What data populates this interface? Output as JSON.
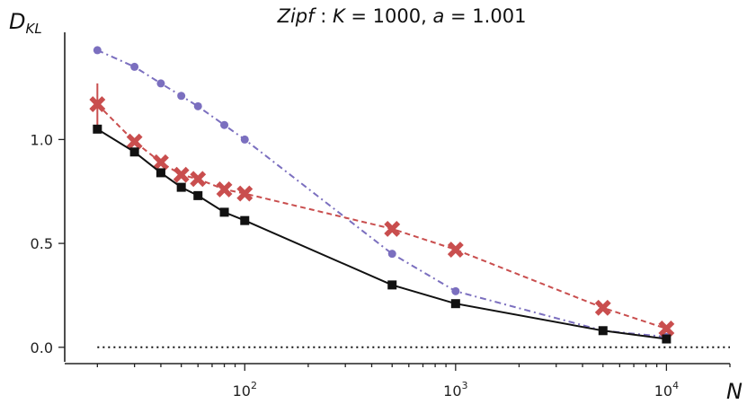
{
  "chart_data": {
    "type": "line",
    "title": "Zipf : K = 1000,  a = 1.001",
    "title_parts": {
      "lead": "Zipf",
      "sep": " : ",
      "k_sym": "K",
      "k_val": " = 1000,  ",
      "a_sym": "a",
      "a_val": " = 1.001"
    },
    "ylabel": {
      "main": "D",
      "sub": "KL"
    },
    "xlabel": "N",
    "xscale": "log",
    "xlim": [
      14,
      20000
    ],
    "ylim": [
      -0.07,
      1.49
    ],
    "yticks": [
      0.0,
      0.5,
      1.0
    ],
    "ytick_labels": [
      "0.0",
      "0.5",
      "1.0"
    ],
    "xticks_major": [
      100,
      1000,
      10000
    ],
    "xtick_labels": [
      {
        "base": "10",
        "exp": "2"
      },
      {
        "base": "10",
        "exp": "3"
      },
      {
        "base": "10",
        "exp": "4"
      }
    ],
    "grid": false,
    "legend": "none",
    "series": [
      {
        "style": "purple-dashdot-circle",
        "color": "#7b6fbf",
        "x": [
          20,
          30,
          40,
          50,
          60,
          80,
          100,
          500,
          1000,
          5000,
          10000
        ],
        "values": [
          1.43,
          1.35,
          1.27,
          1.21,
          1.16,
          1.07,
          1.0,
          0.45,
          0.27,
          0.08,
          0.05
        ]
      },
      {
        "style": "red-dashed-x",
        "color": "#c94e4e",
        "x": [
          20,
          30,
          40,
          50,
          60,
          80,
          100,
          500,
          1000,
          5000,
          10000
        ],
        "values": [
          1.17,
          0.99,
          0.89,
          0.83,
          0.81,
          0.76,
          0.74,
          0.57,
          0.47,
          0.19,
          0.09
        ],
        "errors": [
          0.1,
          0,
          0,
          0,
          0,
          0,
          0,
          0,
          0,
          0,
          0
        ]
      },
      {
        "style": "black-solid-square",
        "color": "#111111",
        "x": [
          20,
          30,
          40,
          50,
          60,
          80,
          100,
          500,
          1000,
          5000,
          10000
        ],
        "values": [
          1.05,
          0.94,
          0.84,
          0.77,
          0.73,
          0.65,
          0.61,
          0.3,
          0.21,
          0.08,
          0.04
        ]
      }
    ],
    "reference_line": {
      "y": 0.0,
      "x": [
        20,
        20000
      ],
      "style": "dotted",
      "color": "#111111"
    }
  }
}
